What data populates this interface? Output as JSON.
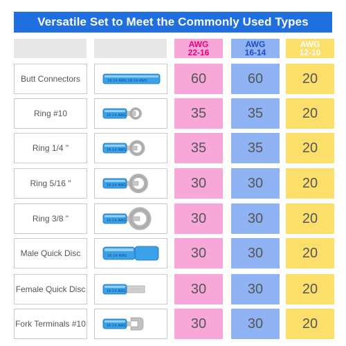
{
  "title": "Versatile Set to Meet the Commonly Used Types",
  "colors": {
    "banner": "#1f6fe0",
    "pink": "#f7a8d8",
    "blue": "#8fb2f2",
    "yellow": "#fcdf6b",
    "pink_text": "#e6007e",
    "blue_text": "#1c4fc4",
    "yellow_text": "#ffffff",
    "connector": "#3aa0e8"
  },
  "columns": [
    {
      "line1": "AWG",
      "line2": "22-16"
    },
    {
      "line1": "AWG",
      "line2": "16-14"
    },
    {
      "line1": "AWG",
      "line2": "12-10"
    }
  ],
  "rows": [
    {
      "name": "Butt Connectors",
      "icon": "butt-connector-icon",
      "values": [
        "60",
        "60",
        "20"
      ]
    },
    {
      "name": "Ring #10",
      "icon": "ring-terminal-icon",
      "values": [
        "35",
        "35",
        "20"
      ]
    },
    {
      "name": "Ring 1/4 \"",
      "icon": "ring-terminal-icon",
      "values": [
        "35",
        "35",
        "20"
      ]
    },
    {
      "name": "Ring 5/16 \"",
      "icon": "ring-terminal-icon",
      "values": [
        "30",
        "30",
        "20"
      ]
    },
    {
      "name": "Ring 3/8 \"",
      "icon": "ring-terminal-icon",
      "values": [
        "30",
        "30",
        "20"
      ]
    },
    {
      "name": "Male Quick Disc",
      "icon": "male-quick-disconnect-icon",
      "values": [
        "30",
        "30",
        "20"
      ]
    },
    {
      "name": "Female Quick Disc",
      "icon": "female-quick-disconnect-icon",
      "values": [
        "30",
        "30",
        "20"
      ]
    },
    {
      "name": "Fork Terminals #10",
      "icon": "fork-terminal-icon",
      "values": [
        "30",
        "30",
        "20"
      ]
    }
  ]
}
